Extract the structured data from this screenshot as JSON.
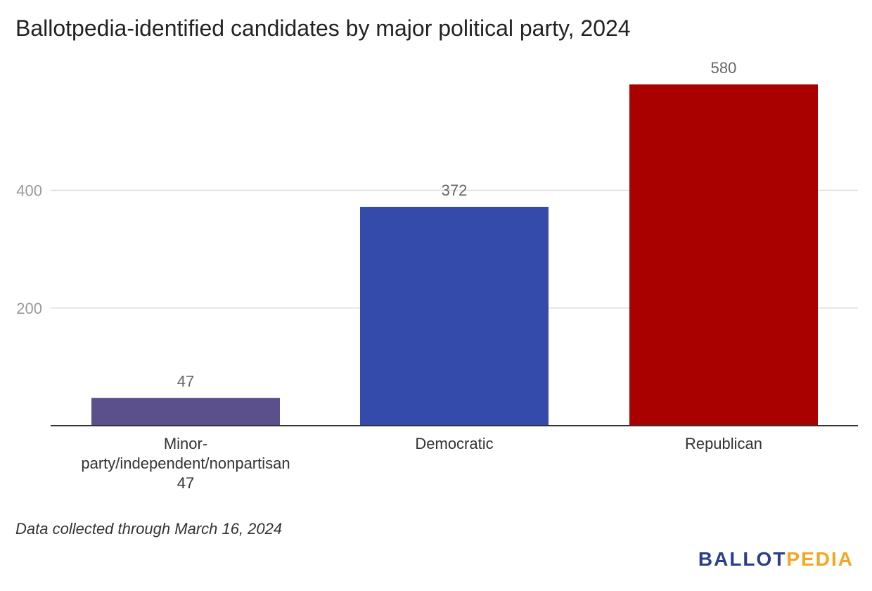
{
  "chart_data": {
    "type": "bar",
    "title": "Ballotpedia-identified candidates by major political party, 2024",
    "categories": [
      [
        "Minor-",
        "party/independent/nonpartisan",
        "47"
      ],
      [
        "Democratic"
      ],
      [
        "Republican"
      ]
    ],
    "values": [
      47,
      372,
      580
    ],
    "value_labels": [
      "47",
      "372",
      "580"
    ],
    "colors": [
      "#5b4f8c",
      "#354bab",
      "#a90000"
    ],
    "ylim": [
      0,
      580
    ],
    "yticks": [
      200,
      400
    ],
    "ytick_labels": [
      "200",
      "400"
    ],
    "grid": true,
    "xlabel": "",
    "ylabel": ""
  },
  "note": "Data collected through March 16, 2024",
  "logo": {
    "part1": "BALLOT",
    "part2": "PEDIA"
  }
}
